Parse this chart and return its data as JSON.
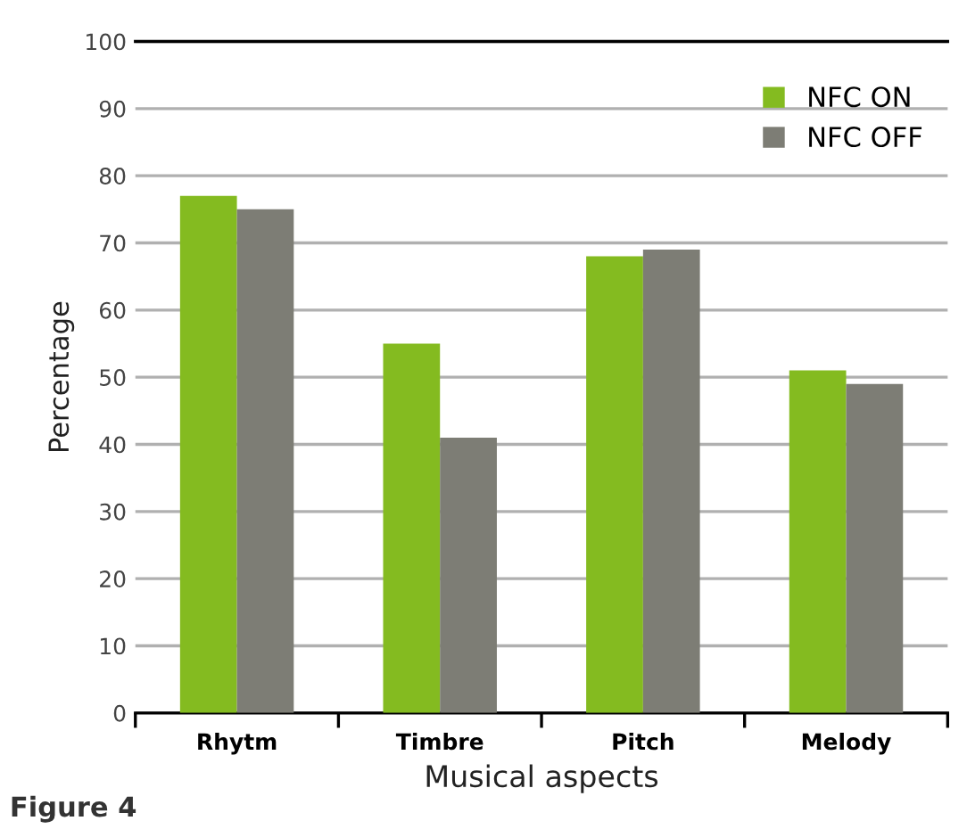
{
  "chart_data": {
    "type": "bar",
    "xlabel": "Musical aspects",
    "ylabel": "Percentage",
    "categories": [
      "Rhytm",
      "Timbre",
      "Pitch",
      "Melody"
    ],
    "series": [
      {
        "name": "NFC ON",
        "color": "#84bb20",
        "values": [
          77,
          55,
          68,
          51
        ]
      },
      {
        "name": "NFC OFF",
        "color": "#7d7d75",
        "values": [
          75,
          41,
          69,
          49
        ]
      }
    ],
    "ylim": [
      0,
      100
    ],
    "yticks": [
      0,
      10,
      20,
      30,
      40,
      50,
      60,
      70,
      80,
      90,
      100
    ],
    "grid": "y",
    "legend": "top right",
    "annotations": [
      "Figure 4"
    ]
  }
}
